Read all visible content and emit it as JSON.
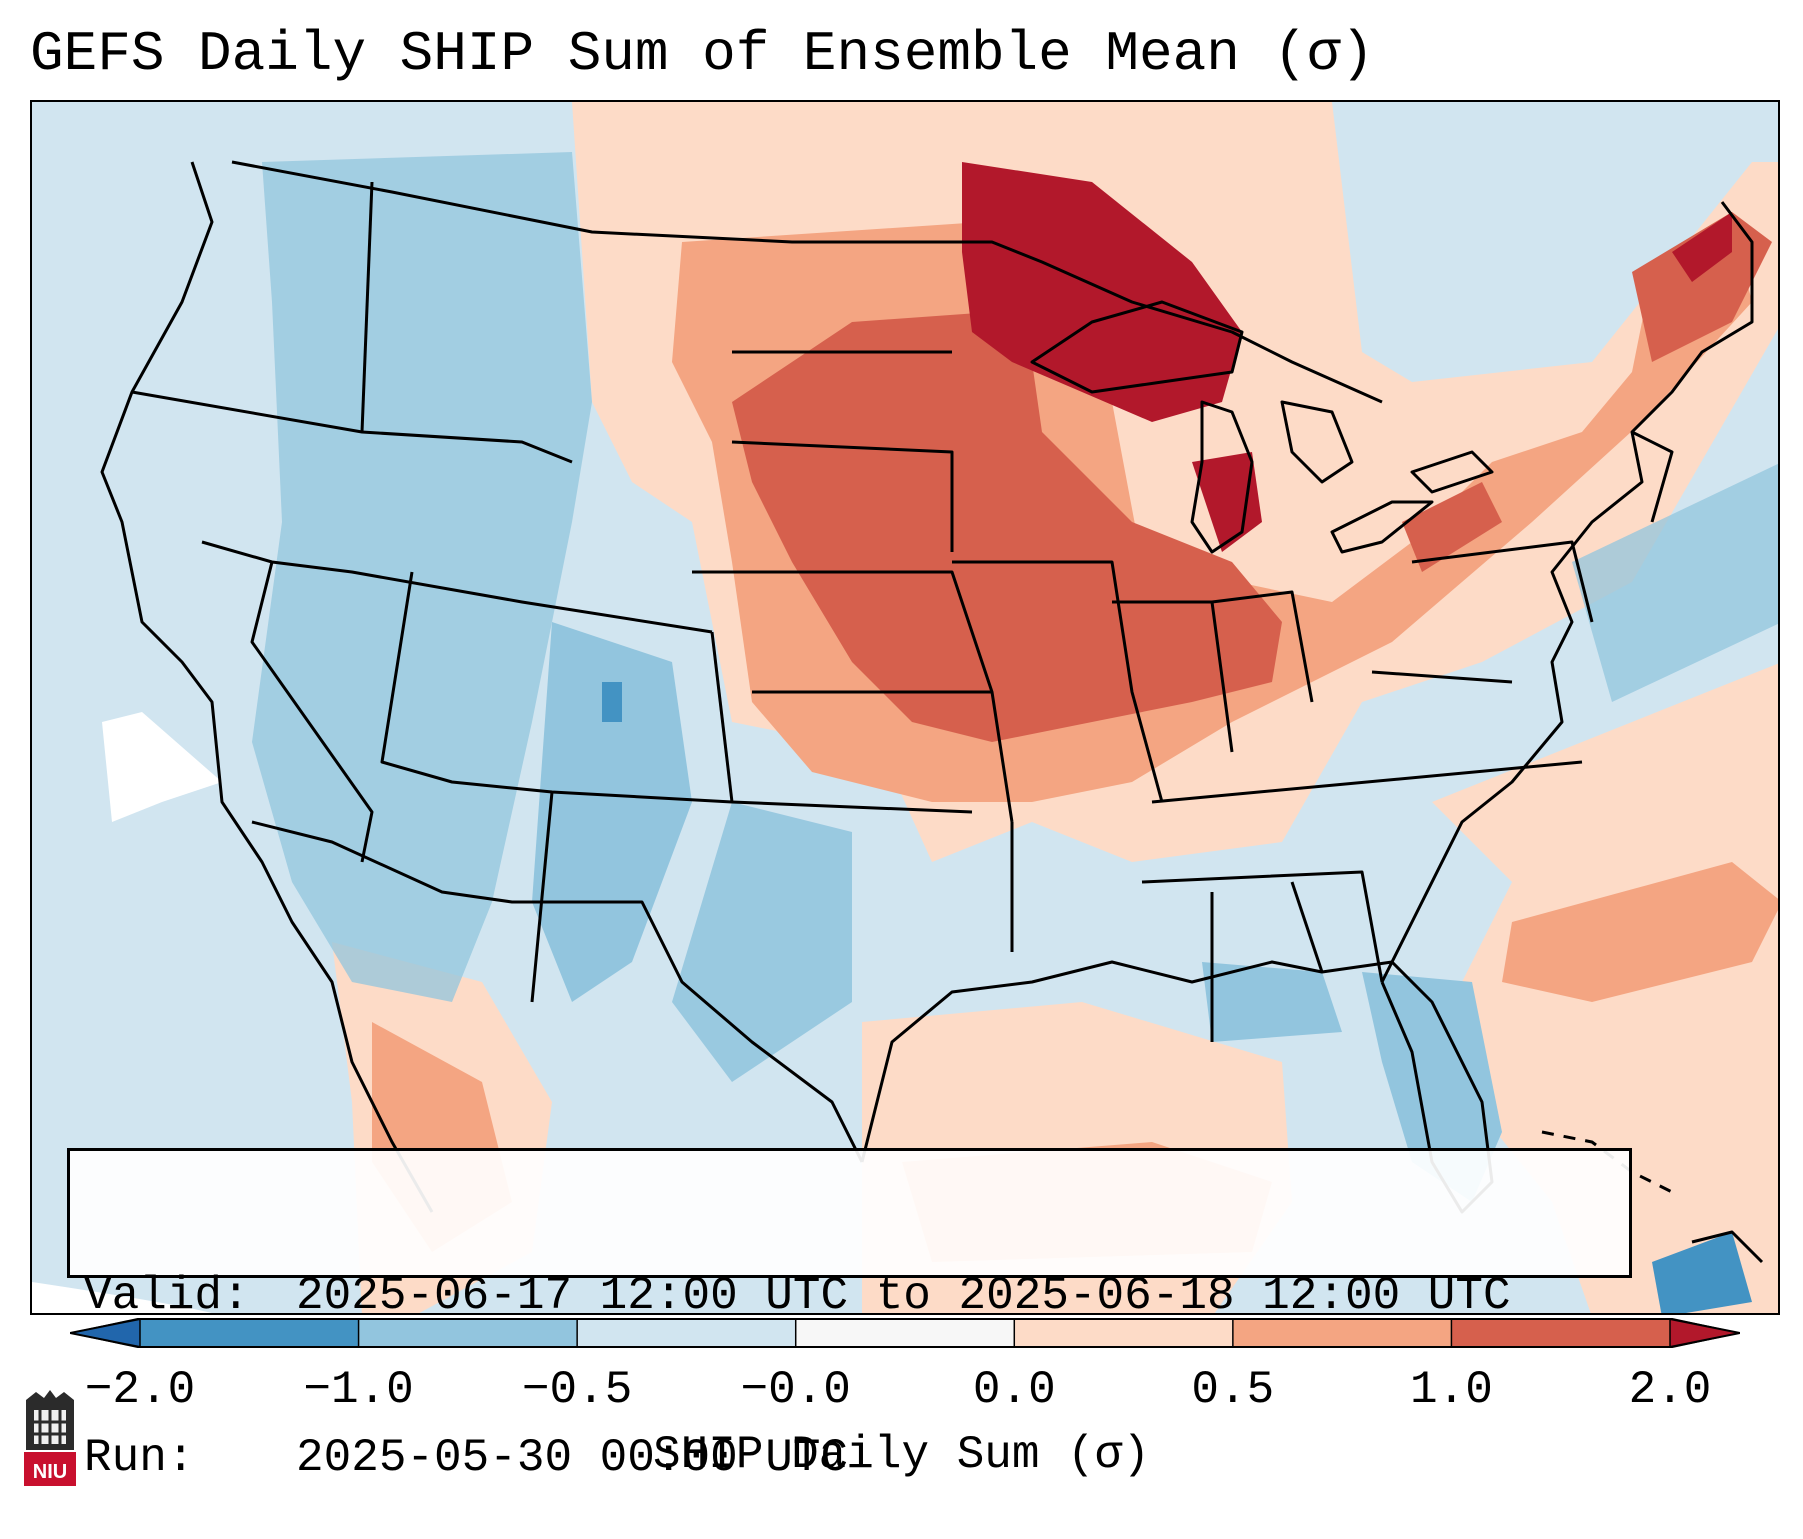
{
  "title": "GEFS Daily SHIP Sum of Ensemble Mean (σ)",
  "map": {
    "region": "Contiguous United States",
    "colormap_colors": [
      "#2166ac",
      "#4393c3",
      "#92c5de",
      "#d1e5f0",
      "#f7f7f7",
      "#fddbc7",
      "#f4a582",
      "#d6604d",
      "#b2182b"
    ],
    "regions_highlight": [
      {
        "name": "Upper Midwest / Great Lakes",
        "level": "1.0 to 2.0"
      },
      {
        "name": "Central Plains",
        "level": "0.5 to 1.0"
      },
      {
        "name": "Intermountain West",
        "level": "-1.0 to -0.5"
      },
      {
        "name": "Gulf of Mexico",
        "level": "0.0 to 0.5"
      }
    ]
  },
  "info": {
    "valid_label": "Valid:",
    "valid_value": "2025-06-17 12:00 UTC to 2025-06-18 12:00 UTC",
    "run_label": "Run:",
    "run_value": "2025-05-30 00:00 UTC"
  },
  "colorbar": {
    "ticks": [
      "−2.0",
      "−1.0",
      "−0.5",
      "−0.0",
      "0.0",
      "0.5",
      "1.0",
      "2.0"
    ],
    "bin_colors": [
      "#4393c3",
      "#92c5de",
      "#d1e5f0",
      "#f7f7f7",
      "#fddbc7",
      "#f4a582",
      "#d6604d"
    ],
    "under_color": "#2166ac",
    "over_color": "#b2182b",
    "label": "SHIP Daily Sum (σ)"
  },
  "logo": {
    "text": "NIU"
  }
}
